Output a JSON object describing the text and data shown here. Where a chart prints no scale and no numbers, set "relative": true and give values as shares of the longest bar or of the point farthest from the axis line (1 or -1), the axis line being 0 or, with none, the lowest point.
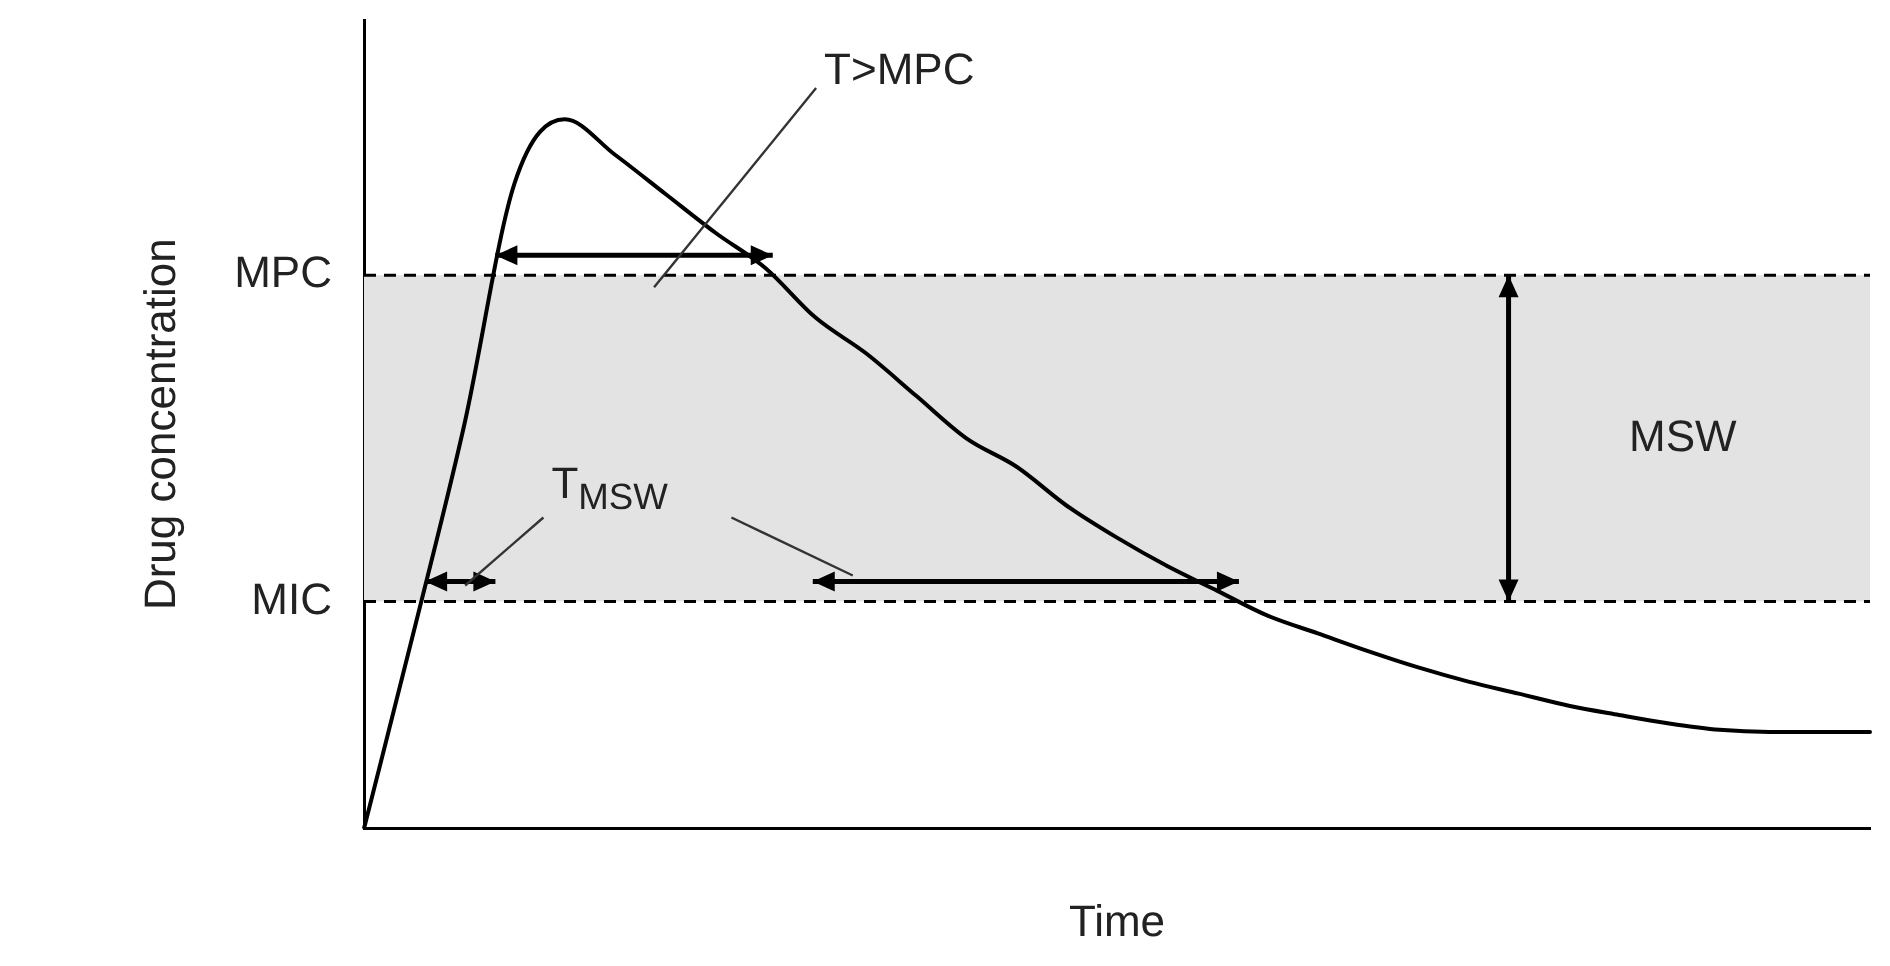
{
  "chart_data": {
    "type": "line",
    "relative": true,
    "xlabel": "Time",
    "ylabel": "Drug concentration",
    "legend": false,
    "grid": false,
    "marker": "none",
    "line_style": "solid",
    "categories": [
      null,
      null,
      null,
      null,
      null,
      null,
      null,
      null,
      null,
      null,
      null,
      null,
      null,
      null,
      null,
      null,
      null,
      null,
      null,
      null,
      null,
      null,
      null,
      null,
      null,
      null,
      null,
      null,
      null,
      null,
      null
    ],
    "series": [
      {
        "color": "#000000",
        "values": [
          0,
          0.28,
          0.57,
          0.91,
          1,
          0.95,
          0.895,
          0.84,
          0.79,
          0.72,
          0.67,
          0.61,
          0.55,
          0.51,
          0.455,
          0.41,
          0.37,
          0.335,
          0.3,
          0.275,
          0.25,
          0.227,
          0.207,
          0.19,
          0.173,
          0.16,
          0.148,
          0.139,
          0.136,
          0.136,
          0.136
        ]
      }
    ],
    "ref_lines": [
      {
        "axis": "y",
        "value": 0.78,
        "label": "MPC",
        "color": "#000000",
        "line_style": "dashed"
      },
      {
        "axis": "y",
        "value": 0.32,
        "label": "MIC",
        "color": "#000000",
        "line_style": "dashed"
      }
    ],
    "bands": [
      {
        "axis": "y",
        "from": 0.32,
        "to": 0.78,
        "label": "MSW",
        "color": "#e3e3e3"
      }
    ],
    "annotations": [
      "T>MPC",
      "T$_{MSW}$"
    ]
  }
}
